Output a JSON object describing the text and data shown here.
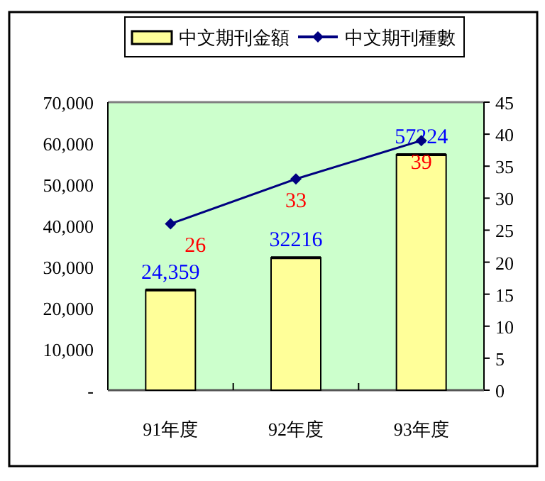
{
  "chart_data": {
    "type": "bar",
    "categories": [
      "91年度",
      "92年度",
      "93年度"
    ],
    "series": [
      {
        "name": "中文期刊金額",
        "color": "#ffff99",
        "values": [
          24359,
          32216,
          57224
        ],
        "value_labels": [
          "24,359",
          "32216",
          "57224"
        ]
      },
      {
        "name": "中文期刊種數",
        "type": "line",
        "axis": "y2",
        "color": "#000080",
        "marker": "diamond",
        "values": [
          26,
          33,
          39
        ],
        "value_labels": [
          "26",
          "33",
          "39"
        ]
      }
    ],
    "ylim": [
      0,
      70000
    ],
    "yticks": [
      {
        "value": 0,
        "label": "-"
      },
      {
        "value": 10000,
        "label": "10,000"
      },
      {
        "value": 20000,
        "label": "20,000"
      },
      {
        "value": 30000,
        "label": "30,000"
      },
      {
        "value": 40000,
        "label": "40,000"
      },
      {
        "value": 50000,
        "label": "50,000"
      },
      {
        "value": 60000,
        "label": "60,000"
      },
      {
        "value": 70000,
        "label": "70,000"
      }
    ],
    "y2lim": [
      0,
      45
    ],
    "y2ticks": [
      0,
      5,
      10,
      15,
      20,
      25,
      30,
      35,
      40,
      45
    ],
    "legend": "top"
  }
}
